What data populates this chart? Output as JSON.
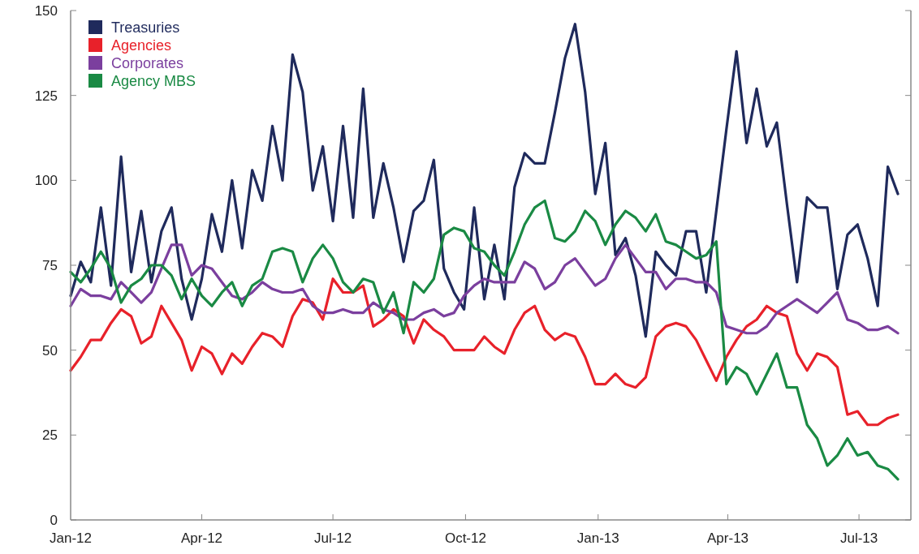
{
  "chart_data": {
    "type": "line",
    "x": [
      "2012-01-01",
      "2012-01-08",
      "2012-01-15",
      "2012-01-22",
      "2012-01-29",
      "2012-02-05",
      "2012-02-12",
      "2012-02-19",
      "2012-02-26",
      "2012-03-04",
      "2012-03-11",
      "2012-03-18",
      "2012-03-25",
      "2012-04-01",
      "2012-04-08",
      "2012-04-15",
      "2012-04-22",
      "2012-04-29",
      "2012-05-06",
      "2012-05-13",
      "2012-05-20",
      "2012-05-27",
      "2012-06-03",
      "2012-06-10",
      "2012-06-17",
      "2012-06-24",
      "2012-07-01",
      "2012-07-08",
      "2012-07-15",
      "2012-07-22",
      "2012-07-29",
      "2012-08-05",
      "2012-08-12",
      "2012-08-19",
      "2012-08-26",
      "2012-09-02",
      "2012-09-09",
      "2012-09-16",
      "2012-09-23",
      "2012-09-30",
      "2012-10-07",
      "2012-10-14",
      "2012-10-21",
      "2012-10-28",
      "2012-11-04",
      "2012-11-11",
      "2012-11-18",
      "2012-11-25",
      "2012-12-02",
      "2012-12-09",
      "2012-12-16",
      "2012-12-23",
      "2012-12-30",
      "2013-01-06",
      "2013-01-13",
      "2013-01-20",
      "2013-01-27",
      "2013-02-03",
      "2013-02-10",
      "2013-02-17",
      "2013-02-24",
      "2013-03-03",
      "2013-03-10",
      "2013-03-17",
      "2013-03-24",
      "2013-03-31",
      "2013-04-07",
      "2013-04-14",
      "2013-04-21",
      "2013-04-28",
      "2013-05-05",
      "2013-05-12",
      "2013-05-19",
      "2013-05-26",
      "2013-06-02",
      "2013-06-09",
      "2013-06-16",
      "2013-06-23",
      "2013-06-30",
      "2013-07-07",
      "2013-07-14",
      "2013-07-21",
      "2013-07-28"
    ],
    "series": [
      {
        "name": "Treasuries",
        "color": "#1f2a5c",
        "values": [
          66,
          76,
          70,
          92,
          69,
          107,
          73,
          91,
          70,
          85,
          92,
          71,
          59,
          71,
          90,
          79,
          100,
          80,
          103,
          94,
          116,
          100,
          137,
          126,
          97,
          110,
          88,
          116,
          89,
          127,
          89,
          105,
          92,
          76,
          91,
          94,
          106,
          74,
          67,
          62,
          92,
          65,
          81,
          65,
          98,
          108,
          105,
          105,
          120,
          136,
          146,
          126,
          96,
          111,
          78,
          83,
          72,
          54,
          79,
          75,
          72,
          85,
          85,
          67,
          91,
          115,
          138,
          111,
          127,
          110,
          117,
          93,
          70,
          95,
          92,
          92,
          68,
          84,
          87,
          77,
          63,
          104,
          96
        ]
      },
      {
        "name": "Agencies",
        "color": "#e8212a",
        "values": [
          44,
          48,
          53,
          53,
          58,
          62,
          60,
          52,
          54,
          63,
          58,
          53,
          44,
          51,
          49,
          43,
          49,
          46,
          51,
          55,
          54,
          51,
          60,
          65,
          64,
          59,
          71,
          67,
          67,
          69,
          57,
          59,
          62,
          60,
          52,
          59,
          56,
          54,
          50,
          50,
          50,
          54,
          51,
          49,
          56,
          61,
          63,
          56,
          53,
          55,
          54,
          48,
          40,
          40,
          43,
          40,
          39,
          42,
          54,
          57,
          58,
          57,
          53,
          47,
          41,
          48,
          53,
          57,
          59,
          63,
          61,
          60,
          49,
          44,
          49,
          48,
          45,
          31,
          32,
          28,
          28,
          30,
          31
        ]
      },
      {
        "name": "Corporates",
        "color": "#7b3f9e",
        "values": [
          63,
          68,
          66,
          66,
          65,
          70,
          67,
          64,
          67,
          74,
          81,
          81,
          72,
          75,
          74,
          70,
          66,
          65,
          67,
          70,
          68,
          67,
          67,
          68,
          63,
          61,
          61,
          62,
          61,
          61,
          64,
          62,
          61,
          59,
          59,
          61,
          62,
          60,
          61,
          66,
          69,
          71,
          70,
          70,
          70,
          76,
          74,
          68,
          70,
          75,
          77,
          73,
          69,
          71,
          77,
          81,
          77,
          73,
          73,
          68,
          71,
          71,
          70,
          70,
          67,
          57,
          56,
          55,
          55,
          57,
          61,
          63,
          65,
          63,
          61,
          64,
          67,
          59,
          58,
          56,
          56,
          57,
          55
        ]
      },
      {
        "name": "Agency MBS",
        "color": "#1a8a44",
        "values": [
          73,
          70,
          74,
          79,
          74,
          64,
          69,
          71,
          75,
          75,
          72,
          65,
          71,
          66,
          63,
          67,
          70,
          63,
          69,
          71,
          79,
          80,
          79,
          70,
          77,
          81,
          77,
          70,
          67,
          71,
          70,
          61,
          67,
          55,
          70,
          67,
          71,
          84,
          86,
          85,
          80,
          79,
          75,
          72,
          79,
          87,
          92,
          94,
          83,
          82,
          85,
          91,
          88,
          81,
          87,
          91,
          89,
          85,
          90,
          82,
          81,
          79,
          77,
          78,
          82,
          40,
          45,
          43,
          37,
          43,
          49,
          39,
          39,
          28,
          24,
          16,
          19,
          24,
          19,
          20,
          16,
          15,
          12
        ]
      }
    ],
    "xlim": [
      "2012-01-01",
      "2013-08-06"
    ],
    "xticks": [
      {
        "value": "2012-01-01",
        "label": "Jan-12"
      },
      {
        "value": "2012-04-01",
        "label": "Apr-12"
      },
      {
        "value": "2012-07-01",
        "label": "Jul-12"
      },
      {
        "value": "2012-10-01",
        "label": "Oct-12"
      },
      {
        "value": "2013-01-01",
        "label": "Jan-13"
      },
      {
        "value": "2013-04-01",
        "label": "Apr-13"
      },
      {
        "value": "2013-07-01",
        "label": "Jul-13"
      }
    ],
    "ylim": [
      0,
      150
    ],
    "yticks": [
      0,
      25,
      50,
      75,
      100,
      125,
      150
    ],
    "grid": false,
    "legend": "top left",
    "marker": "none",
    "line_style": "solid"
  }
}
